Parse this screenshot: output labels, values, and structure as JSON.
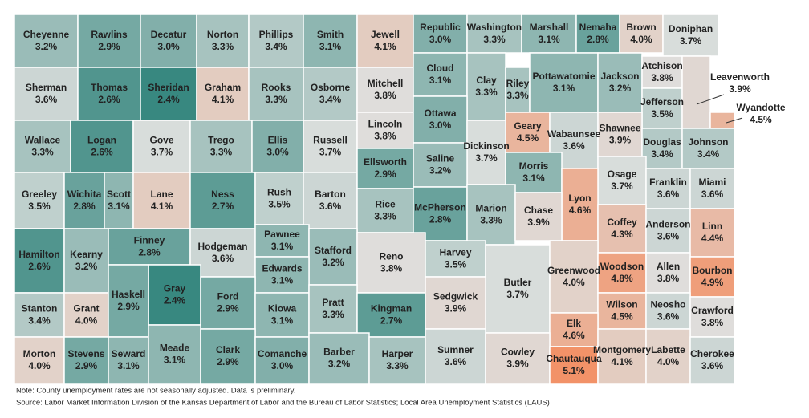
{
  "counties": [
    {
      "name": "Cheyenne",
      "value": 3.2,
      "label": "3.2%"
    },
    {
      "name": "Rawlins",
      "value": 2.9,
      "label": "2.9%"
    },
    {
      "name": "Decatur",
      "value": 3.0,
      "label": "3.0%"
    },
    {
      "name": "Norton",
      "value": 3.3,
      "label": "3.3%"
    },
    {
      "name": "Phillips",
      "value": 3.4,
      "label": "3.4%"
    },
    {
      "name": "Smith",
      "value": 3.1,
      "label": "3.1%"
    },
    {
      "name": "Jewell",
      "value": 4.1,
      "label": "4.1%"
    },
    {
      "name": "Republic",
      "value": 3.0,
      "label": "3.0%"
    },
    {
      "name": "Washington",
      "value": 3.3,
      "label": "3.3%"
    },
    {
      "name": "Marshall",
      "value": 3.1,
      "label": "3.1%"
    },
    {
      "name": "Nemaha",
      "value": 2.8,
      "label": "2.8%"
    },
    {
      "name": "Brown",
      "value": 4.0,
      "label": "4.0%"
    },
    {
      "name": "Doniphan",
      "value": 3.7,
      "label": "3.7%"
    },
    {
      "name": "Sherman",
      "value": 3.6,
      "label": "3.6%"
    },
    {
      "name": "Thomas",
      "value": 2.6,
      "label": "2.6%"
    },
    {
      "name": "Sheridan",
      "value": 2.4,
      "label": "2.4%"
    },
    {
      "name": "Graham",
      "value": 4.1,
      "label": "4.1%"
    },
    {
      "name": "Rooks",
      "value": 3.3,
      "label": "3.3%"
    },
    {
      "name": "Osborne",
      "value": 3.4,
      "label": "3.4%"
    },
    {
      "name": "Mitchell",
      "value": 3.8,
      "label": "3.8%"
    },
    {
      "name": "Cloud",
      "value": 3.1,
      "label": "3.1%"
    },
    {
      "name": "Clay",
      "value": 3.3,
      "label": "3.3%"
    },
    {
      "name": "Riley",
      "value": 3.3,
      "label": "3.3%"
    },
    {
      "name": "Pottawatomie",
      "value": 3.1,
      "label": "3.1%"
    },
    {
      "name": "Jackson",
      "value": 3.2,
      "label": "3.2%"
    },
    {
      "name": "Atchison",
      "value": 3.8,
      "label": "3.8%"
    },
    {
      "name": "Jefferson",
      "value": 3.5,
      "label": "3.5%"
    },
    {
      "name": "Leavenworth",
      "value": 3.9,
      "label": "3.9%"
    },
    {
      "name": "Wyandotte",
      "value": 4.5,
      "label": "4.5%"
    },
    {
      "name": "Wallace",
      "value": 3.3,
      "label": "3.3%"
    },
    {
      "name": "Logan",
      "value": 2.6,
      "label": "2.6%"
    },
    {
      "name": "Gove",
      "value": 3.7,
      "label": "3.7%"
    },
    {
      "name": "Trego",
      "value": 3.3,
      "label": "3.3%"
    },
    {
      "name": "Ellis",
      "value": 3.0,
      "label": "3.0%"
    },
    {
      "name": "Russell",
      "value": 3.7,
      "label": "3.7%"
    },
    {
      "name": "Lincoln",
      "value": 3.8,
      "label": "3.8%"
    },
    {
      "name": "Ottawa",
      "value": 3.0,
      "label": "3.0%"
    },
    {
      "name": "Geary",
      "value": 4.5,
      "label": "4.5%"
    },
    {
      "name": "Wabaunsee",
      "value": 3.6,
      "label": "3.6%"
    },
    {
      "name": "Shawnee",
      "value": 3.9,
      "label": "3.9%"
    },
    {
      "name": "Dickinson",
      "value": 3.7,
      "label": "3.7%"
    },
    {
      "name": "Morris",
      "value": 3.1,
      "label": "3.1%"
    },
    {
      "name": "Douglas",
      "value": 3.4,
      "label": "3.4%"
    },
    {
      "name": "Johnson",
      "value": 3.4,
      "label": "3.4%"
    },
    {
      "name": "Greeley",
      "value": 3.5,
      "label": "3.5%"
    },
    {
      "name": "Wichita",
      "value": 2.8,
      "label": "2.8%"
    },
    {
      "name": "Scott",
      "value": 3.1,
      "label": "3.1%"
    },
    {
      "name": "Lane",
      "value": 4.1,
      "label": "4.1%"
    },
    {
      "name": "Ness",
      "value": 2.7,
      "label": "2.7%"
    },
    {
      "name": "Rush",
      "value": 3.5,
      "label": "3.5%"
    },
    {
      "name": "Barton",
      "value": 3.6,
      "label": "3.6%"
    },
    {
      "name": "Ellsworth",
      "value": 2.9,
      "label": "2.9%"
    },
    {
      "name": "Saline",
      "value": 3.2,
      "label": "3.2%"
    },
    {
      "name": "Osage",
      "value": 3.7,
      "label": "3.7%"
    },
    {
      "name": "Lyon",
      "value": 4.6,
      "label": "4.6%"
    },
    {
      "name": "Franklin",
      "value": 3.6,
      "label": "3.6%"
    },
    {
      "name": "Miami",
      "value": 3.6,
      "label": "3.6%"
    },
    {
      "name": "Rice",
      "value": 3.3,
      "label": "3.3%"
    },
    {
      "name": "McPherson",
      "value": 2.8,
      "label": "2.8%"
    },
    {
      "name": "Marion",
      "value": 3.3,
      "label": "3.3%"
    },
    {
      "name": "Chase",
      "value": 3.9,
      "label": "3.9%"
    },
    {
      "name": "Coffey",
      "value": 4.3,
      "label": "4.3%"
    },
    {
      "name": "Anderson",
      "value": 3.6,
      "label": "3.6%"
    },
    {
      "name": "Linn",
      "value": 4.4,
      "label": "4.4%"
    },
    {
      "name": "Hamilton",
      "value": 2.6,
      "label": "2.6%"
    },
    {
      "name": "Kearny",
      "value": 3.2,
      "label": "3.2%"
    },
    {
      "name": "Finney",
      "value": 2.8,
      "label": "2.8%"
    },
    {
      "name": "Hodgeman",
      "value": 3.6,
      "label": "3.6%"
    },
    {
      "name": "Pawnee",
      "value": 3.1,
      "label": "3.1%"
    },
    {
      "name": "Stafford",
      "value": 3.2,
      "label": "3.2%"
    },
    {
      "name": "Reno",
      "value": 3.8,
      "label": "3.8%"
    },
    {
      "name": "Harvey",
      "value": 3.5,
      "label": "3.5%"
    },
    {
      "name": "Butler",
      "value": 3.7,
      "label": "3.7%"
    },
    {
      "name": "Greenwood",
      "value": 4.0,
      "label": "4.0%"
    },
    {
      "name": "Woodson",
      "value": 4.8,
      "label": "4.8%"
    },
    {
      "name": "Allen",
      "value": 3.8,
      "label": "3.8%"
    },
    {
      "name": "Bourbon",
      "value": 4.9,
      "label": "4.9%"
    },
    {
      "name": "Edwards",
      "value": 3.1,
      "label": "3.1%"
    },
    {
      "name": "Gray",
      "value": 2.4,
      "label": "2.4%"
    },
    {
      "name": "Ford",
      "value": 2.9,
      "label": "2.9%"
    },
    {
      "name": "Stanton",
      "value": 3.4,
      "label": "3.4%"
    },
    {
      "name": "Grant",
      "value": 4.0,
      "label": "4.0%"
    },
    {
      "name": "Haskell",
      "value": 2.9,
      "label": "2.9%"
    },
    {
      "name": "Kiowa",
      "value": 3.1,
      "label": "3.1%"
    },
    {
      "name": "Pratt",
      "value": 3.3,
      "label": "3.3%"
    },
    {
      "name": "Kingman",
      "value": 2.7,
      "label": "2.7%"
    },
    {
      "name": "Sedgwick",
      "value": 3.9,
      "label": "3.9%"
    },
    {
      "name": "Wilson",
      "value": 4.5,
      "label": "4.5%"
    },
    {
      "name": "Neosho",
      "value": 3.6,
      "label": "3.6%"
    },
    {
      "name": "Crawford",
      "value": 3.8,
      "label": "3.8%"
    },
    {
      "name": "Elk",
      "value": 4.6,
      "label": "4.6%"
    },
    {
      "name": "Morton",
      "value": 4.0,
      "label": "4.0%"
    },
    {
      "name": "Stevens",
      "value": 2.9,
      "label": "2.9%"
    },
    {
      "name": "Seward",
      "value": 3.1,
      "label": "3.1%"
    },
    {
      "name": "Meade",
      "value": 3.1,
      "label": "3.1%"
    },
    {
      "name": "Clark",
      "value": 2.9,
      "label": "2.9%"
    },
    {
      "name": "Comanche",
      "value": 3.0,
      "label": "3.0%"
    },
    {
      "name": "Barber",
      "value": 3.2,
      "label": "3.2%"
    },
    {
      "name": "Harper",
      "value": 3.3,
      "label": "3.3%"
    },
    {
      "name": "Sumner",
      "value": 3.6,
      "label": "3.6%"
    },
    {
      "name": "Cowley",
      "value": 3.9,
      "label": "3.9%"
    },
    {
      "name": "Chautauqua",
      "value": 5.1,
      "label": "5.1%"
    },
    {
      "name": "Montgomery",
      "value": 4.1,
      "label": "4.1%"
    },
    {
      "name": "Labette",
      "value": 4.0,
      "label": "4.0%"
    },
    {
      "name": "Cherokee",
      "value": 3.6,
      "label": "3.6%"
    }
  ],
  "note": "Note: County unemployment rates are not seasonally adjusted. Data is preliminary.",
  "source": "Source: Labor Market Information Division of the Kansas Department of Labor and the Bureau of Labor Statistics; Local Area Unemployment Statistics (LAUS)"
}
